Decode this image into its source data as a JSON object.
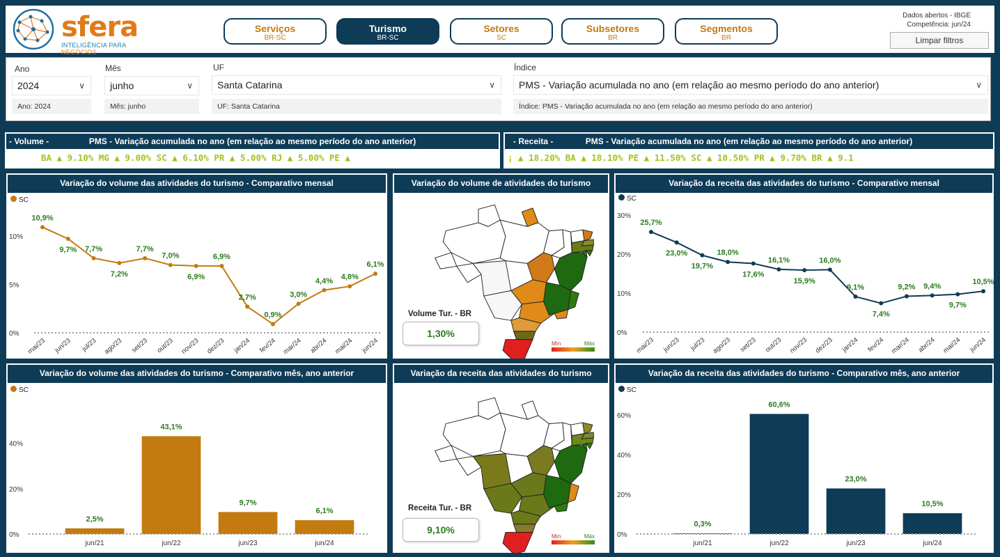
{
  "brand": {
    "name": "sfera",
    "tagline_a": "INTELIGÊNCIA PARA ",
    "tagline_b": "NEGÓCIOS"
  },
  "nav": [
    {
      "label": "Serviços",
      "sub": "BR-SC",
      "active": false
    },
    {
      "label": "Turismo",
      "sub": "BR-SC",
      "active": true
    },
    {
      "label": "Setores",
      "sub": "SC",
      "active": false
    },
    {
      "label": "Subsetores",
      "sub": "BR",
      "active": false
    },
    {
      "label": "Segmentos",
      "sub": "BR",
      "active": false
    }
  ],
  "meta": {
    "source": "Dados abertos - IBGE",
    "competencia": "Competência: jun/24",
    "clear": "Limpar filtros"
  },
  "filters": {
    "ano": {
      "label": "Ano",
      "value": "2024",
      "chip": "Ano: 2024"
    },
    "mes": {
      "label": "Mês",
      "value": "junho",
      "chip": "Mês: junho"
    },
    "uf": {
      "label": "UF",
      "value": "Santa Catarina",
      "chip": "UF: Santa Catarina"
    },
    "indice": {
      "label": "Índice",
      "value": "PMS - Variação acumulada no ano (em relação ao mesmo período do ano anterior)",
      "chip": "Índice: PMS - Variação acumulada no ano (em relação ao mesmo período do ano anterior)"
    }
  },
  "ticker_volume": {
    "left": "- Volume -",
    "title": "PMS - Variação acumulada no ano (em relação ao mesmo período do ano anterior)",
    "text": "BA ▲ 9.10%   MG ▲ 9.00%   SC ▲ 6.10%   PR ▲ 5.00%   RJ ▲ 5.00%   PE ▲"
  },
  "ticker_receita": {
    "left": "- Receita -",
    "title": "PMS - Variação acumulada no ano (em relação ao mesmo período do ano anterior)",
    "text": "¡ ▲ 18.20%   BA ▲ 18.10%   PE ▲ 11.50%   SC ▲ 10.50%   PR ▲ 9.70%   BR ▲ 9.1"
  },
  "colors": {
    "orange": "#c37a10",
    "navy": "#0e3b56",
    "green": "#2d7a1e"
  },
  "panels": {
    "p1": {
      "title": "Variação do volume das atividades do turismo - Comparativo mensal",
      "legend": "SC"
    },
    "p2": {
      "title": "Variação do volume de atividades do turismo",
      "kpi_label": "Volume Tur. - BR",
      "kpi_value": "1,30%",
      "min": "Mín",
      "max": "Máx"
    },
    "p3": {
      "title": "Variação da receita das atividades do turismo - Comparativo mensal",
      "legend": "SC"
    },
    "p4": {
      "title": "Variação do volume das atividades do turismo - Comparativo mês, ano anterior",
      "legend": "SC"
    },
    "p5": {
      "title": "Variação da receita das atividades do turismo",
      "kpi_label": "Receita Tur. - BR",
      "kpi_value": "9,10%",
      "min": "Mín",
      "max": "Máx"
    },
    "p6": {
      "title": "Variação da receita das atividades do turismo - Comparativo mês, ano anterior",
      "legend": "SC"
    }
  },
  "chart_data": [
    {
      "type": "line",
      "series": [
        {
          "name": "SC",
          "values": [
            10.9,
            9.7,
            7.7,
            7.2,
            7.7,
            7.0,
            6.9,
            6.9,
            2.7,
            0.9,
            3.0,
            4.4,
            4.8,
            6.1
          ]
        }
      ],
      "categories": [
        "mai/23",
        "jun/23",
        "jul/23",
        "ago/23",
        "set/23",
        "out/23",
        "nov/23",
        "dez/23",
        "jan/24",
        "fev/24",
        "mar/24",
        "abr/24",
        "mai/24",
        "jun/24"
      ],
      "labels": [
        "10,9%",
        "9,7%",
        "7,7%",
        "7,2%",
        "7,7%",
        "7,0%",
        "6,9%",
        "6,9%",
        "2,7%",
        "0,9%",
        "3,0%",
        "4,4%",
        "4,8%",
        "6,1%"
      ],
      "yticks": [
        "0%",
        "5%",
        "10%"
      ],
      "ylim": [
        0,
        12
      ]
    },
    {
      "type": "line",
      "series": [
        {
          "name": "SC",
          "values": [
            25.7,
            23.0,
            19.7,
            18.0,
            17.6,
            16.1,
            15.9,
            16.0,
            9.1,
            7.4,
            9.2,
            9.4,
            9.7,
            10.5
          ]
        }
      ],
      "categories": [
        "mai/23",
        "jun/23",
        "jul/23",
        "ago/23",
        "set/23",
        "out/23",
        "nov/23",
        "dez/23",
        "jan/24",
        "fev/24",
        "mar/24",
        "abr/24",
        "mai/24",
        "jun/24"
      ],
      "labels": [
        "25,7%",
        "23,0%",
        "19,7%",
        "18,0%",
        "17,6%",
        "16,1%",
        "15,9%",
        "16,0%",
        "9,1%",
        "7,4%",
        "9,2%",
        "9,4%",
        "9,7%",
        "10,5%"
      ],
      "yticks": [
        "0%",
        "10%",
        "20%",
        "30%"
      ],
      "ylim": [
        0,
        30
      ]
    },
    {
      "type": "bar",
      "series": [
        {
          "name": "SC",
          "values": [
            2.5,
            43.1,
            9.7,
            6.1
          ]
        }
      ],
      "categories": [
        "jun/21",
        "jun/22",
        "jun/23",
        "jun/24"
      ],
      "labels": [
        "2,5%",
        "43,1%",
        "9,7%",
        "6,1%"
      ],
      "yticks": [
        "0%",
        "20%",
        "40%"
      ],
      "ylim": [
        0,
        50
      ]
    },
    {
      "type": "bar",
      "series": [
        {
          "name": "SC",
          "values": [
            0.3,
            60.6,
            23.0,
            10.5
          ]
        }
      ],
      "categories": [
        "jun/21",
        "jun/22",
        "jun/23",
        "jun/24"
      ],
      "labels": [
        "0,3%",
        "60,6%",
        "23,0%",
        "10,5%"
      ],
      "yticks": [
        "0%",
        "20%",
        "40%",
        "60%"
      ],
      "ylim": [
        0,
        65
      ]
    }
  ]
}
